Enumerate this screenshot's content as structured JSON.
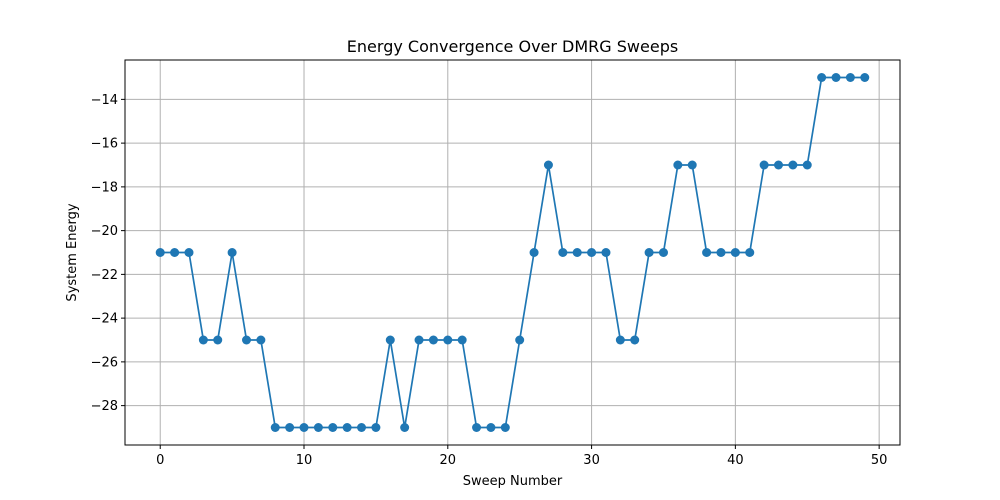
{
  "chart_data": {
    "type": "line",
    "title": "Energy Convergence Over DMRG Sweeps",
    "xlabel": "Sweep Number",
    "ylabel": "System Energy",
    "x": [
      0,
      1,
      2,
      3,
      4,
      5,
      6,
      7,
      8,
      9,
      10,
      11,
      12,
      13,
      14,
      15,
      16,
      17,
      18,
      19,
      20,
      21,
      22,
      23,
      24,
      25,
      26,
      27,
      28,
      29,
      30,
      31,
      32,
      33,
      34,
      35,
      36,
      37,
      38,
      39,
      40,
      41,
      42,
      43,
      44,
      45,
      46,
      47,
      48,
      49
    ],
    "series": [
      {
        "values": [
          -21,
          -21,
          -21,
          -25,
          -25,
          -21,
          -25,
          -25,
          -29,
          -29,
          -29,
          -29,
          -29,
          -29,
          -29,
          -29,
          -25,
          -29,
          -25,
          -25,
          -25,
          -25,
          -29,
          -29,
          -29,
          -25,
          -21,
          -17,
          -21,
          -21,
          -21,
          -21,
          -25,
          -25,
          -21,
          -21,
          -17,
          -17,
          -21,
          -21,
          -21,
          -21,
          -17,
          -17,
          -17,
          -17,
          -13,
          -13,
          -13,
          -13
        ],
        "color": "#1f77b4",
        "marker": "circle"
      }
    ],
    "xlim": [
      -2.45,
      51.45
    ],
    "ylim": [
      -29.8,
      -12.2
    ],
    "xticks": [
      0,
      10,
      20,
      30,
      40,
      50
    ],
    "xtick_labels": [
      "0",
      "10",
      "20",
      "30",
      "40",
      "50"
    ],
    "yticks": [
      -28,
      -26,
      -24,
      -22,
      -20,
      -18,
      -16,
      -14
    ],
    "ytick_labels": [
      "−28",
      "−26",
      "−24",
      "−22",
      "−20",
      "−18",
      "−16",
      "−14"
    ],
    "grid": true
  }
}
